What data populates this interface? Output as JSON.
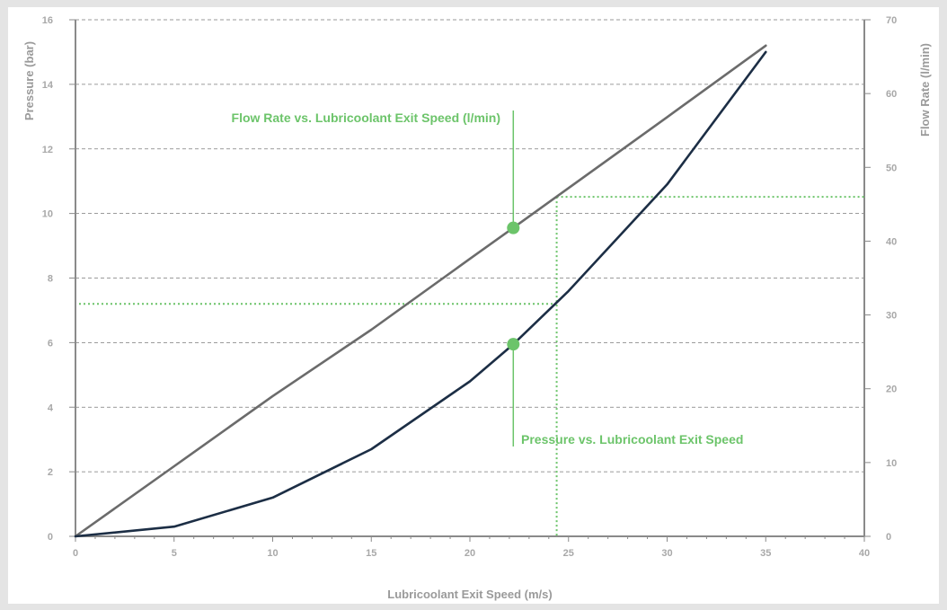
{
  "chart_data": {
    "type": "line",
    "xlabel": "Lubricoolant Exit Speed (m/s)",
    "ylabel_left": "Pressure (bar)",
    "ylabel_right": "Flow Rate (l/min)",
    "xlim": [
      0,
      40
    ],
    "ylim_left": [
      0,
      16
    ],
    "ylim_right": [
      0,
      70
    ],
    "x_ticks": [
      "0",
      "5",
      "10",
      "15",
      "20",
      "25",
      "30",
      "35",
      "40"
    ],
    "y_left_ticks": [
      "0",
      "2",
      "4",
      "6",
      "8",
      "10",
      "12",
      "14",
      "16"
    ],
    "y_right_ticks": [
      "0",
      "10",
      "20",
      "30",
      "40",
      "50",
      "60",
      "70"
    ],
    "grid": true,
    "series": [
      {
        "axis": "right",
        "color": "#6b6b6b",
        "x": [
          0,
          5,
          10,
          15,
          20,
          22.2,
          25,
          30,
          35
        ],
        "y": [
          0,
          9.5,
          19,
          28,
          37.6,
          41.8,
          47.2,
          56.8,
          66.5
        ]
      },
      {
        "axis": "left",
        "color": "#1c2e45",
        "x": [
          0,
          5,
          10,
          15,
          20,
          22.2,
          25,
          30,
          35
        ],
        "y": [
          0,
          0.3,
          1.2,
          2.7,
          4.8,
          5.95,
          7.6,
          10.9,
          15.0
        ]
      }
    ],
    "annotations": [
      {
        "text": "Flow Rate vs. Lubricoolant Exit Speed (l/min)",
        "x": 22.2,
        "y": 41.8,
        "axis": "right"
      },
      {
        "text": "Pressure vs. Lubricoolant Exit Speed",
        "x": 22.2,
        "y": 5.95,
        "axis": "left"
      }
    ],
    "reference_lines": {
      "x": 24.4,
      "y_left": 7.2,
      "y_right": 46
    },
    "colors": {
      "annotation": "#6cc46a",
      "grid": "#7a7a7a",
      "axis": "#8a8a8a"
    }
  }
}
